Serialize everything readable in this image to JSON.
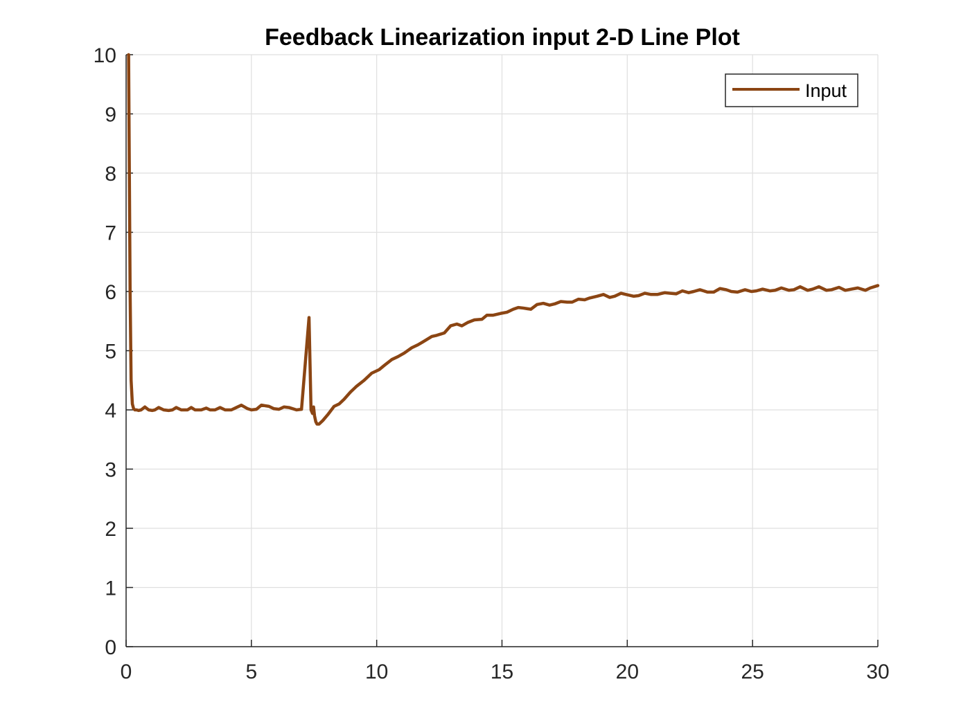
{
  "chart_data": {
    "type": "line",
    "title": "Feedback Linearization input 2-D Line Plot",
    "xlabel": "",
    "ylabel": "",
    "xlim": [
      0,
      30
    ],
    "ylim": [
      0,
      10
    ],
    "xticks": [
      0,
      5,
      10,
      15,
      20,
      25,
      30
    ],
    "yticks": [
      0,
      1,
      2,
      3,
      4,
      5,
      6,
      7,
      8,
      9,
      10
    ],
    "grid": true,
    "legend": {
      "position": "top-right",
      "entries": [
        "Input"
      ]
    },
    "series": [
      {
        "name": "Input",
        "color": "#8B4513",
        "x": [
          0.1,
          0.13,
          0.16,
          0.2,
          0.25,
          0.3,
          0.35,
          0.42,
          0.5,
          0.6,
          0.75,
          0.9,
          1.05,
          1.15,
          1.3,
          1.5,
          1.7,
          1.85,
          2.0,
          2.2,
          2.45,
          2.6,
          2.75,
          3.0,
          3.2,
          3.35,
          3.55,
          3.75,
          3.95,
          4.05,
          4.2,
          4.4,
          4.6,
          4.85,
          5.0,
          5.2,
          5.4,
          5.7,
          5.9,
          6.1,
          6.3,
          6.5,
          6.8,
          7.0,
          7.3,
          7.38,
          7.44,
          7.48,
          7.52,
          7.57,
          7.62,
          7.7,
          7.85,
          8.05,
          8.3,
          8.5,
          8.7,
          8.95,
          9.2,
          9.5,
          9.8,
          10.1,
          10.3,
          10.6,
          10.85,
          11.1,
          11.4,
          11.65,
          11.85,
          12.2,
          12.4,
          12.7,
          12.95,
          13.2,
          13.4,
          13.65,
          13.9,
          14.2,
          14.4,
          14.65,
          14.95,
          15.2,
          15.45,
          15.65,
          15.85,
          16.15,
          16.4,
          16.65,
          16.9,
          17.1,
          17.35,
          17.6,
          17.8,
          18.05,
          18.3,
          18.5,
          18.8,
          19.05,
          19.3,
          19.5,
          19.75,
          19.95,
          20.25,
          20.45,
          20.7,
          20.95,
          21.2,
          21.5,
          21.7,
          21.95,
          22.2,
          22.45,
          22.65,
          22.9,
          23.2,
          23.45,
          23.7,
          23.95,
          24.15,
          24.4,
          24.7,
          24.95,
          25.15,
          25.4,
          25.7,
          25.9,
          26.15,
          26.45,
          26.65,
          26.9,
          27.2,
          27.4,
          27.65,
          27.95,
          28.15,
          28.45,
          28.7,
          28.95,
          29.2,
          29.5,
          29.7,
          30.0
        ],
        "values": [
          10.0,
          8.0,
          6.0,
          4.5,
          4.1,
          4.02,
          4.0,
          4.0,
          3.99,
          4.0,
          4.05,
          4.0,
          3.99,
          4.0,
          4.04,
          4.0,
          3.99,
          4.0,
          4.04,
          4.0,
          4.0,
          4.04,
          4.0,
          4.0,
          4.03,
          4.0,
          4.0,
          4.04,
          4.0,
          4.0,
          4.0,
          4.04,
          4.08,
          4.02,
          4.0,
          4.01,
          4.08,
          4.06,
          4.02,
          4.01,
          4.05,
          4.04,
          4.0,
          4.01,
          5.56,
          4.0,
          3.94,
          4.05,
          3.9,
          3.8,
          3.76,
          3.76,
          3.82,
          3.92,
          4.06,
          4.1,
          4.18,
          4.3,
          4.4,
          4.5,
          4.62,
          4.68,
          4.75,
          4.85,
          4.9,
          4.96,
          5.05,
          5.1,
          5.15,
          5.24,
          5.26,
          5.3,
          5.42,
          5.45,
          5.42,
          5.48,
          5.52,
          5.53,
          5.6,
          5.6,
          5.63,
          5.65,
          5.7,
          5.73,
          5.72,
          5.7,
          5.78,
          5.8,
          5.77,
          5.79,
          5.83,
          5.82,
          5.82,
          5.87,
          5.86,
          5.89,
          5.92,
          5.95,
          5.9,
          5.92,
          5.97,
          5.95,
          5.92,
          5.93,
          5.97,
          5.95,
          5.95,
          5.98,
          5.97,
          5.96,
          6.01,
          5.98,
          6.0,
          6.03,
          5.99,
          5.99,
          6.05,
          6.03,
          6.0,
          5.99,
          6.03,
          6.0,
          6.01,
          6.04,
          6.01,
          6.02,
          6.06,
          6.02,
          6.03,
          6.08,
          6.02,
          6.04,
          6.08,
          6.02,
          6.03,
          6.07,
          6.02,
          6.04,
          6.06,
          6.02,
          6.06,
          6.1
        ]
      }
    ]
  }
}
